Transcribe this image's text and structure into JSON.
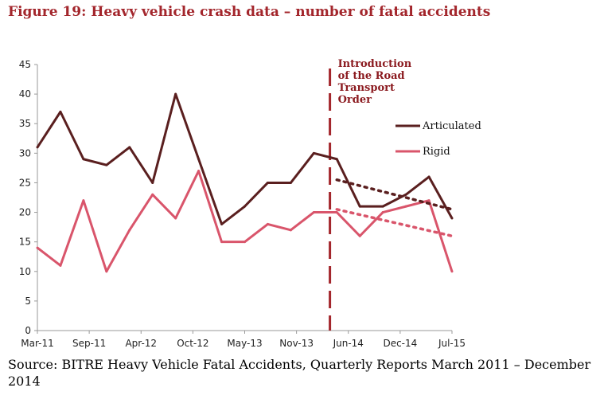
{
  "figure_title": "Figure 19: Heavy vehicle crash data – number of fatal accidents",
  "source_text": "Source: BITRE Heavy Vehicle Fatal Accidents, Quarterly Reports March 2011 – December 2014",
  "colors": {
    "title": "#a3262c",
    "articulated": "#5a1f1f",
    "rigid": "#d9556b",
    "intro_line": "#a3262c"
  },
  "chart_data": {
    "type": "line",
    "title": "",
    "xlabel": "",
    "ylabel": "",
    "ylim": [
      0,
      45
    ],
    "yticks": [
      0,
      5,
      10,
      15,
      20,
      25,
      30,
      35,
      40,
      45
    ],
    "x_tick_labels": [
      "Mar-11",
      "Sep-11",
      "Apr-12",
      "Oct-12",
      "May-13",
      "Nov-13",
      "Jun-14",
      "Dec-14",
      "Jul-15"
    ],
    "series": [
      {
        "name": "Articulated",
        "values": [
          31,
          37,
          29,
          28,
          31,
          25,
          40,
          29,
          18,
          21,
          25,
          25,
          30,
          29,
          21,
          21,
          23,
          26,
          19
        ],
        "color": "#5a1f1f"
      },
      {
        "name": "Rigid",
        "values": [
          14,
          11,
          22,
          10,
          17,
          23,
          19,
          27,
          15,
          15,
          18,
          17,
          20,
          20,
          16,
          20,
          21,
          22,
          10
        ],
        "color": "#d9556b"
      }
    ],
    "trend_lines": [
      {
        "series": "Articulated",
        "from": [
          13,
          25.5
        ],
        "to": [
          18,
          20.5
        ],
        "style": "dotted"
      },
      {
        "series": "Rigid",
        "from": [
          13,
          20.5
        ],
        "to": [
          18,
          16
        ],
        "style": "dotted"
      }
    ],
    "annotation": {
      "text_lines": [
        "Introduction",
        "of the Road",
        "Transport",
        "Order"
      ],
      "x": 12.7
    },
    "legend_position": "right",
    "grid": false
  }
}
